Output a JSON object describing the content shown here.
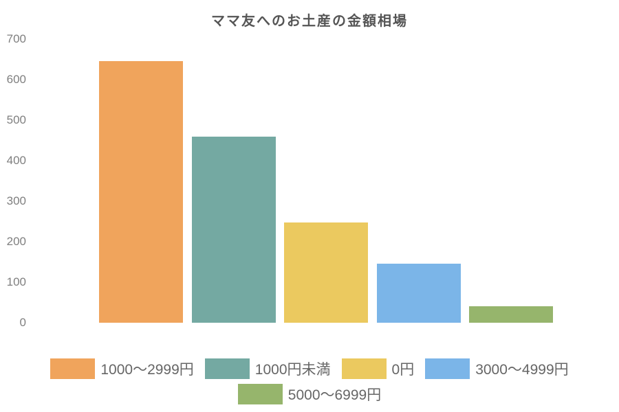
{
  "chart_data": {
    "type": "bar",
    "title": "ママ友へのお土産の金額相場",
    "categories": [
      "1000〜2999円",
      "1000円未満",
      "0円",
      "3000〜4999円",
      "5000〜6999円"
    ],
    "values": [
      645,
      460,
      247,
      146,
      40
    ],
    "colors": [
      "#F0A45C",
      "#74A9A2",
      "#EBC95F",
      "#7BB5E8",
      "#96B56C"
    ],
    "xlabel": "",
    "ylabel": "",
    "ylim": [
      0,
      700
    ],
    "yticks": [
      0,
      100,
      200,
      300,
      400,
      500,
      600,
      700
    ],
    "grid": false,
    "legend_position": "bottom",
    "background": "#FFFFFF",
    "text_colors": {
      "title": "#555555",
      "axis": "#7F7F7F",
      "legend": "#666666"
    }
  }
}
